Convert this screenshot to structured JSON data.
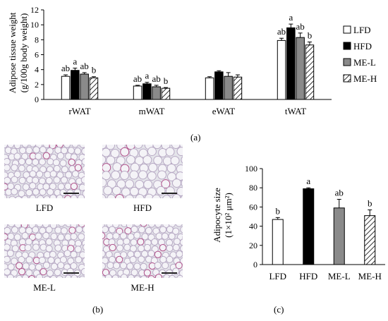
{
  "colors": {
    "LFD": "#ffffff",
    "HFD": "#000000",
    "ME-L": "#8a8a8a",
    "ME-H": "hatch"
  },
  "chart_data": [
    {
      "panel": "(a)",
      "type": "bar",
      "ylabel_lines": [
        "Adipose tissue weight",
        "(g/100g body weight)"
      ],
      "ylim": [
        0,
        12
      ],
      "yticks": [
        "0",
        "2",
        "4",
        "6",
        "8",
        "10",
        "12"
      ],
      "categories": [
        "rWAT",
        "mWAT",
        "eWAT",
        "tWAT"
      ],
      "legend": {
        "placement": "right",
        "entries": [
          "LFD",
          "HFD",
          "ME-L",
          "ME-H"
        ]
      },
      "series": [
        {
          "name": "LFD",
          "values": [
            3.1,
            1.8,
            2.9,
            7.9
          ],
          "errors": [
            0.2,
            0.1,
            0.15,
            0.3
          ],
          "letters": [
            "ab",
            "ab",
            "",
            "ab"
          ]
        },
        {
          "name": "HFD",
          "values": [
            3.9,
            2.1,
            3.7,
            9.6
          ],
          "errors": [
            0.3,
            0.2,
            0.15,
            0.5
          ],
          "letters": [
            "a",
            "a",
            "",
            "a"
          ]
        },
        {
          "name": "ME-L",
          "values": [
            3.4,
            1.7,
            3.1,
            8.3
          ],
          "errors": [
            0.2,
            0.2,
            0.5,
            0.6
          ],
          "letters": [
            "ab",
            "ab",
            "",
            "ab"
          ]
        },
        {
          "name": "ME-H",
          "values": [
            2.9,
            1.5,
            3.0,
            7.3
          ],
          "errors": [
            0.15,
            0.1,
            0.3,
            0.4
          ],
          "letters": [
            "b",
            "b",
            "",
            "b"
          ]
        }
      ],
      "grid": false
    },
    {
      "panel": "(c)",
      "type": "bar",
      "ylabel_lines": [
        "Adipocyte size",
        "(1×10² μm²)"
      ],
      "ylim": [
        0,
        100
      ],
      "yticks": [
        "0",
        "20",
        "40",
        "60",
        "80",
        "100"
      ],
      "categories": [
        "LFD",
        "HFD",
        "ME-L",
        "ME-H"
      ],
      "values": [
        47,
        79,
        59,
        51
      ],
      "errors": [
        2,
        1,
        9,
        6
      ],
      "letters": [
        "b",
        "a",
        "ab",
        "b"
      ],
      "grid": false
    }
  ],
  "panel_b": {
    "panel": "(b)",
    "images": [
      {
        "label": "LFD"
      },
      {
        "label": "HFD"
      },
      {
        "label": "ME-L"
      },
      {
        "label": "ME-H"
      }
    ]
  }
}
